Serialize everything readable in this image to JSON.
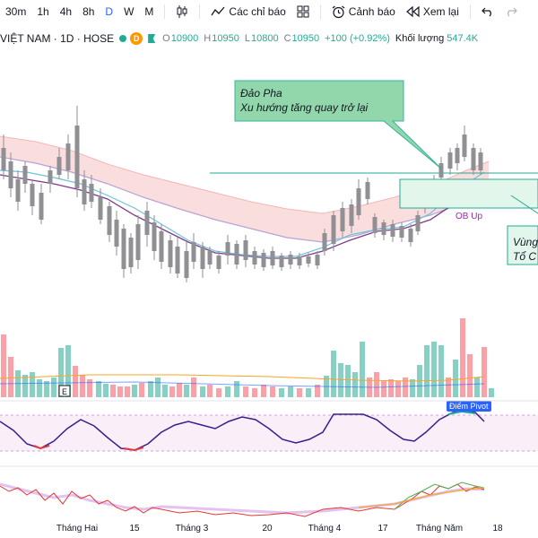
{
  "toolbar": {
    "timeframes": [
      "30m",
      "1h",
      "4h",
      "8h",
      "D",
      "W",
      "M"
    ],
    "active_timeframe": "D",
    "indicators_label": "Các chỉ báo",
    "alerts_label": "Cảnh báo",
    "replay_label": "Xem lại"
  },
  "legend": {
    "symbol": "VIỆT NAM · 1D · HOSE",
    "badge": "D",
    "open_label": "O",
    "open": "10900",
    "high_label": "H",
    "high": "10950",
    "low_label": "L",
    "low": "10800",
    "close_label": "C",
    "close": "10950",
    "change": "+100 (+0.92%)",
    "volume_label": "Khối lượng",
    "volume": "547.4K"
  },
  "annotations": {
    "dao_pha_line1": "Đảo Pha",
    "dao_pha_line2": "Xu hướng tăng quay trở lại",
    "ob_up": "OB Up",
    "vung_line1": "Vùng",
    "vung_line2": "Tổ C",
    "diem_pivot": "Điểm Pivot",
    "earnings_marker": "E"
  },
  "x_axis": {
    "labels": [
      "Tháng Hai",
      "15",
      "Tháng 3",
      "20",
      "Tháng 4",
      "17",
      "Tháng Năm",
      "18"
    ]
  },
  "colors": {
    "up": "#22ab94",
    "down": "#f7525f",
    "candle_up": "#f5b461",
    "candle_down": "#8f8f94",
    "accent": "#2962ff",
    "ribbon_red": "#f8d3d3",
    "callout_green": "#86d3a3"
  }
}
